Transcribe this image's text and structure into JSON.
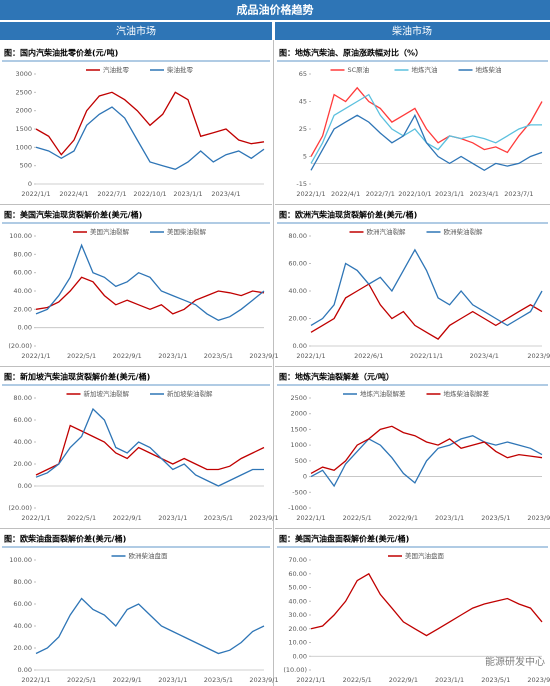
{
  "header": {
    "title": "成品油价格趋势",
    "sections": [
      "汽油市场",
      "柴油市场"
    ]
  },
  "watermark": "能源研发中心",
  "chart_data": [
    {
      "type": "line",
      "title": "图：国内汽柴油批零价差(元/吨)",
      "categories": [
        "2022/1/1",
        null,
        null,
        "2022/4/1",
        null,
        null,
        "2022/7/1",
        null,
        null,
        "2022/10/1",
        null,
        null,
        "2023/1/1",
        null,
        null,
        "2023/4/1",
        null,
        null,
        null
      ],
      "series": [
        {
          "name": "汽油批零",
          "color": "#c00000",
          "values": [
            1500,
            1300,
            800,
            1200,
            2000,
            2400,
            2500,
            2300,
            2000,
            1600,
            1900,
            2500,
            2300,
            1300,
            1400,
            1500,
            1200,
            1100,
            1150
          ]
        },
        {
          "name": "柴油批零",
          "color": "#2e75b6",
          "values": [
            1000,
            900,
            700,
            900,
            1600,
            1900,
            2100,
            1800,
            1200,
            600,
            500,
            400,
            600,
            900,
            600,
            800,
            900,
            700,
            950
          ]
        }
      ],
      "ylim": [
        0,
        3000
      ],
      "yticks": [
        0,
        500,
        1000,
        1500,
        2000,
        2500,
        3000
      ]
    },
    {
      "type": "line",
      "title": "图：地炼汽柴油、原油涨跌幅对比（%）",
      "categories": [
        "2022/1/1",
        null,
        null,
        "2022/4/1",
        null,
        null,
        "2022/7/1",
        null,
        null,
        "2022/10/1",
        null,
        null,
        "2023/1/1",
        null,
        null,
        "2023/4/1",
        null,
        null,
        "2023/7/1",
        null,
        null
      ],
      "series": [
        {
          "name": "SC原油",
          "color": "#ff3b3b",
          "values": [
            5,
            20,
            50,
            45,
            55,
            45,
            40,
            30,
            35,
            40,
            25,
            15,
            20,
            18,
            15,
            10,
            12,
            8,
            20,
            30,
            45
          ]
        },
        {
          "name": "地炼汽油",
          "color": "#5bc0de",
          "values": [
            0,
            15,
            35,
            40,
            45,
            50,
            35,
            25,
            20,
            25,
            15,
            10,
            20,
            18,
            20,
            18,
            15,
            20,
            25,
            28,
            28
          ]
        },
        {
          "name": "地炼柴油",
          "color": "#2e75b6",
          "values": [
            -5,
            10,
            25,
            30,
            35,
            30,
            22,
            15,
            20,
            35,
            15,
            5,
            0,
            5,
            0,
            -5,
            0,
            -2,
            0,
            5,
            8
          ]
        }
      ],
      "ylim": [
        -15,
        65
      ],
      "yticks": [
        -15,
        5,
        25,
        45,
        65
      ]
    },
    {
      "type": "line",
      "title": "图：美国汽柴油现货裂解价差(美元/桶)",
      "categories": [
        "2022/1/1",
        null,
        null,
        null,
        "2022/5/1",
        null,
        null,
        null,
        "2022/9/1",
        null,
        null,
        null,
        "2023/1/1",
        null,
        null,
        null,
        "2023/5/1",
        null,
        null,
        null,
        "2023/9/1"
      ],
      "series": [
        {
          "name": "美国汽油裂解",
          "color": "#c00000",
          "values": [
            20,
            22,
            28,
            40,
            55,
            50,
            35,
            25,
            30,
            25,
            20,
            25,
            15,
            20,
            30,
            35,
            40,
            38,
            35,
            40,
            38
          ]
        },
        {
          "name": "美国柴油裂解",
          "color": "#2e75b6",
          "values": [
            15,
            20,
            35,
            55,
            90,
            60,
            55,
            45,
            50,
            60,
            55,
            40,
            35,
            30,
            25,
            15,
            8,
            12,
            20,
            30,
            40
          ]
        }
      ],
      "ylim": [
        -20,
        100
      ],
      "yticks": [
        {
          "value": -20,
          "label": "(20.00)"
        },
        {
          "value": 0,
          "label": "0.00"
        },
        {
          "value": 20,
          "label": "20.00"
        },
        {
          "value": 40,
          "label": "40.00"
        },
        {
          "value": 60,
          "label": "60.00"
        },
        {
          "value": 80,
          "label": "80.00"
        },
        {
          "value": 100,
          "label": "100.00"
        }
      ]
    },
    {
      "type": "line",
      "title": "图：欧洲汽柴油现货裂解价差(美元/桶)",
      "categories": [
        "2022/1/1",
        null,
        null,
        null,
        null,
        "2022/6/1",
        null,
        null,
        null,
        null,
        "2022/11/1",
        null,
        null,
        null,
        null,
        "2023/4/1",
        null,
        null,
        null,
        null,
        "2023/9/1"
      ],
      "series": [
        {
          "name": "欧洲汽油裂解",
          "color": "#c00000",
          "values": [
            10,
            15,
            20,
            35,
            40,
            45,
            30,
            20,
            25,
            15,
            10,
            5,
            15,
            20,
            25,
            20,
            15,
            20,
            25,
            30,
            25
          ]
        },
        {
          "name": "欧洲柴油裂解",
          "color": "#2e75b6",
          "values": [
            15,
            20,
            30,
            60,
            55,
            45,
            50,
            40,
            55,
            70,
            55,
            35,
            30,
            40,
            30,
            25,
            20,
            15,
            20,
            25,
            40
          ]
        }
      ],
      "ylim": [
        0,
        80
      ],
      "yticks": [
        {
          "value": 0,
          "label": "0.00"
        },
        {
          "value": 20,
          "label": "20.00"
        },
        {
          "value": 40,
          "label": "40.00"
        },
        {
          "value": 60,
          "label": "60.00"
        },
        {
          "value": 80,
          "label": "80.00"
        }
      ]
    },
    {
      "type": "line",
      "title": "图：新加坡汽柴油现货裂解价差(美元/桶)",
      "categories": [
        "2022/1/1",
        null,
        null,
        null,
        "2022/5/1",
        null,
        null,
        null,
        "2022/9/1",
        null,
        null,
        null,
        "2023/1/1",
        null,
        null,
        null,
        "2023/5/1",
        null,
        null,
        null,
        "2023/9/1"
      ],
      "series": [
        {
          "name": "新加坡汽油裂解",
          "color": "#c00000",
          "values": [
            10,
            15,
            20,
            55,
            50,
            45,
            40,
            30,
            25,
            35,
            30,
            25,
            20,
            25,
            20,
            15,
            15,
            18,
            25,
            30,
            35
          ]
        },
        {
          "name": "新加坡柴油裂解",
          "color": "#2e75b6",
          "values": [
            8,
            12,
            20,
            35,
            45,
            70,
            60,
            35,
            30,
            40,
            35,
            25,
            15,
            20,
            10,
            5,
            0,
            5,
            10,
            15,
            15
          ]
        }
      ],
      "ylim": [
        -20,
        80
      ],
      "yticks": [
        {
          "value": -20,
          "label": "(20.00)"
        },
        {
          "value": 0,
          "label": "0.00"
        },
        {
          "value": 20,
          "label": "20.00"
        },
        {
          "value": 40,
          "label": "40.00"
        },
        {
          "value": 60,
          "label": "60.00"
        },
        {
          "value": 80,
          "label": "80.00"
        }
      ]
    },
    {
      "type": "line",
      "title": "图：地炼汽柴油裂解差（元/吨）",
      "categories": [
        "2022/1/1",
        null,
        null,
        null,
        "2022/5/1",
        null,
        null,
        null,
        "2022/9/1",
        null,
        null,
        null,
        "2023/1/1",
        null,
        null,
        null,
        "2023/5/1",
        null,
        null,
        null,
        "2023/9/1"
      ],
      "series": [
        {
          "name": "地炼汽油裂解差",
          "color": "#2e75b6",
          "values": [
            0,
            200,
            -300,
            400,
            800,
            1200,
            1000,
            600,
            100,
            -200,
            500,
            900,
            1000,
            1200,
            1300,
            1100,
            1000,
            1100,
            1000,
            900,
            700
          ]
        },
        {
          "name": "地炼柴油裂解差",
          "color": "#c00000",
          "values": [
            100,
            300,
            200,
            500,
            1000,
            1200,
            1500,
            1600,
            1400,
            1300,
            1100,
            1000,
            1200,
            900,
            1000,
            1100,
            800,
            600,
            700,
            650,
            600
          ]
        }
      ],
      "ylim": [
        -1000,
        2500
      ],
      "yticks": [
        -1000,
        -500,
        0,
        500,
        1000,
        1500,
        2000,
        2500
      ]
    },
    {
      "type": "line",
      "title": "图：欧柴油盘面裂解价差(美元/桶)",
      "categories": [
        "2022/1/1",
        null,
        null,
        null,
        "2022/5/1",
        null,
        null,
        null,
        "2022/9/1",
        null,
        null,
        null,
        "2023/1/1",
        null,
        null,
        null,
        "2023/5/1",
        null,
        null,
        null,
        "2023/9/1"
      ],
      "series": [
        {
          "name": "欧洲柴油盘面",
          "color": "#2e75b6",
          "values": [
            15,
            20,
            30,
            50,
            65,
            55,
            50,
            40,
            55,
            60,
            50,
            40,
            35,
            30,
            25,
            20,
            15,
            18,
            25,
            35,
            40
          ]
        }
      ],
      "ylim": [
        0,
        100
      ],
      "yticks": [
        {
          "value": 0,
          "label": "0.00"
        },
        {
          "value": 20,
          "label": "20.00"
        },
        {
          "value": 40,
          "label": "40.00"
        },
        {
          "value": 60,
          "label": "60.00"
        },
        {
          "value": 80,
          "label": "80.00"
        },
        {
          "value": 100,
          "label": "100.00"
        }
      ]
    },
    {
      "type": "line",
      "title": "图：美国汽油盘面裂解价差(美元/桶)",
      "categories": [
        "2022/1/1",
        null,
        null,
        null,
        "2022/5/1",
        null,
        null,
        null,
        "2022/9/1",
        null,
        null,
        null,
        "2023/1/1",
        null,
        null,
        null,
        "2023/5/1",
        null,
        null,
        null,
        "2023/9/1"
      ],
      "series": [
        {
          "name": "美国汽油盘面",
          "color": "#c00000",
          "values": [
            20,
            22,
            30,
            40,
            55,
            60,
            45,
            35,
            25,
            20,
            15,
            20,
            25,
            30,
            35,
            38,
            40,
            42,
            38,
            35,
            25
          ]
        }
      ],
      "ylim": [
        -10,
        70
      ],
      "yticks": [
        {
          "value": -10,
          "label": "(10.00)"
        },
        {
          "value": 0,
          "label": "0.00"
        },
        {
          "value": 10,
          "label": "10.00"
        },
        {
          "value": 20,
          "label": "20.00"
        },
        {
          "value": 30,
          "label": "30.00"
        },
        {
          "value": 40,
          "label": "40.00"
        },
        {
          "value": 50,
          "label": "50.00"
        },
        {
          "value": 60,
          "label": "60.00"
        },
        {
          "value": 70,
          "label": "70.00"
        }
      ]
    }
  ]
}
